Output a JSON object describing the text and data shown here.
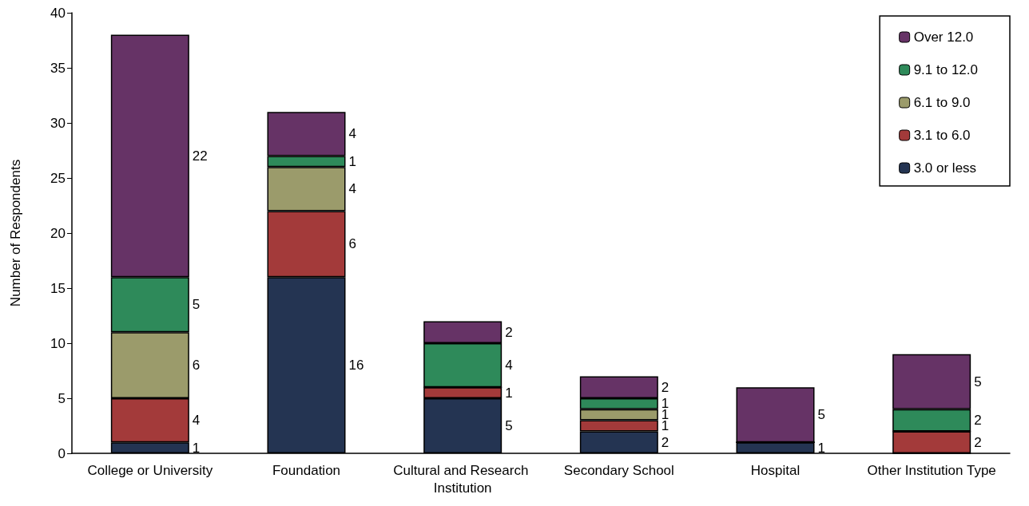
{
  "chart_data": {
    "type": "bar",
    "stacked": true,
    "ylabel": "Number of Respondents",
    "categories": [
      "College or University",
      "Foundation",
      "Cultural and Research Institution",
      "Secondary School",
      "Hospital",
      "Other Institution Type"
    ],
    "series": [
      {
        "name": "3.0 or less",
        "color": "#243452",
        "values": [
          1,
          16,
          5,
          2,
          1,
          0
        ],
        "value_labels": [
          "1",
          "16",
          "5",
          "2",
          "1",
          null
        ]
      },
      {
        "name": "3.1 to 6.0",
        "color": "#a33a3a",
        "values": [
          4,
          6,
          1,
          1,
          0,
          2
        ],
        "value_labels": [
          "4",
          "6",
          "1",
          "1",
          null,
          "2"
        ]
      },
      {
        "name": "6.1 to 9.0",
        "color": "#9b9b6b",
        "values": [
          6,
          4,
          0,
          1,
          0,
          0
        ],
        "value_labels": [
          "6",
          "4",
          null,
          "1",
          null,
          null
        ]
      },
      {
        "name": "9.1 to 12.0",
        "color": "#2e8a5a",
        "values": [
          5,
          1,
          4,
          1,
          0,
          2
        ],
        "value_labels": [
          "5",
          "1",
          "4",
          "1",
          null,
          "2"
        ]
      },
      {
        "name": "Over 12.0",
        "color": "#663366",
        "values": [
          22,
          4,
          2,
          2,
          5,
          5
        ],
        "value_labels": [
          "22",
          "4",
          "2",
          "2",
          "5",
          "5"
        ]
      }
    ],
    "ylim": [
      0,
      40
    ],
    "yticks": [
      0,
      5,
      10,
      15,
      20,
      25,
      30,
      35,
      40
    ],
    "grid": false,
    "legend": "top right"
  }
}
